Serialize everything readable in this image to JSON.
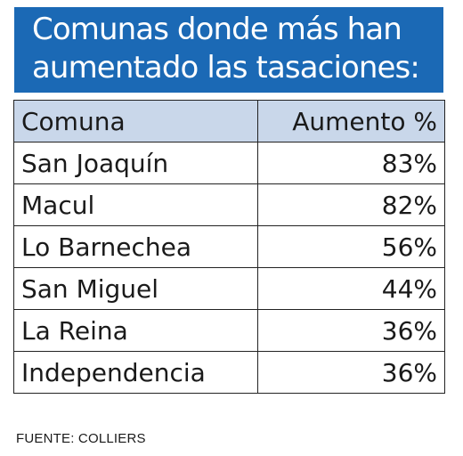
{
  "title": {
    "line1": "Comunas donde más han",
    "line2": "aumentado las tasaciones:"
  },
  "colors": {
    "banner": "#1b69b5",
    "header_fill": "#c9d7ea",
    "border": "#222222"
  },
  "chart_data": {
    "type": "table",
    "title": "Comunas donde más han aumentado las tasaciones:",
    "columns": [
      "Comuna",
      "Aumento %"
    ],
    "rows": [
      {
        "comuna": "San Joaquín",
        "aumento": "83%"
      },
      {
        "comuna": "Macul",
        "aumento": "82%"
      },
      {
        "comuna": "Lo Barnechea",
        "aumento": "56%"
      },
      {
        "comuna": "San Miguel",
        "aumento": "44%"
      },
      {
        "comuna": "La Reina",
        "aumento": "36%"
      },
      {
        "comuna": "Independencia",
        "aumento": "36%"
      }
    ],
    "values": [
      83,
      82,
      56,
      44,
      36,
      36
    ]
  },
  "source": "FUENTE: COLLIERS"
}
